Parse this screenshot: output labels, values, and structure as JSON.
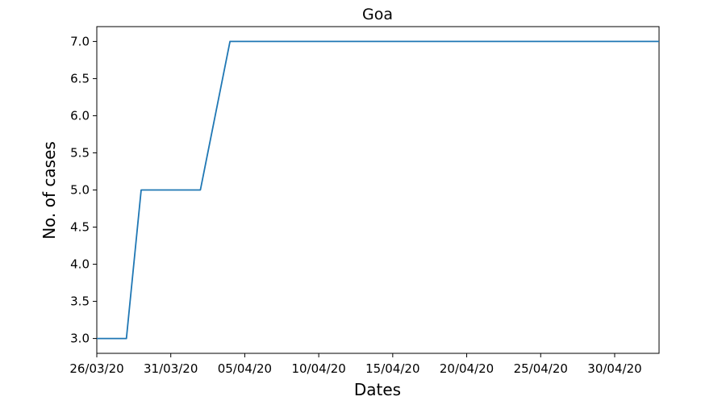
{
  "chart_data": {
    "type": "line",
    "title": "Goa",
    "xlabel": "Dates",
    "ylabel": "No. of cases",
    "x_tick_labels": [
      "26/03/20",
      "31/03/20",
      "05/04/20",
      "10/04/20",
      "15/04/20",
      "20/04/20",
      "25/04/20",
      "30/04/20"
    ],
    "y_tick_labels": [
      "3.0",
      "3.5",
      "4.0",
      "4.5",
      "5.0",
      "5.5",
      "6.0",
      "6.5",
      "7.0"
    ],
    "xlim": [
      "26/03/20",
      "03/05/20"
    ],
    "ylim": [
      2.8,
      7.2
    ],
    "grid": false,
    "series": [
      {
        "color": "#1f77b4",
        "x": [
          "26/03/20",
          "28/03/20",
          "29/03/20",
          "02/04/20",
          "04/04/20",
          "03/05/20"
        ],
        "y": [
          3,
          3,
          5,
          5,
          7,
          7
        ]
      }
    ]
  }
}
